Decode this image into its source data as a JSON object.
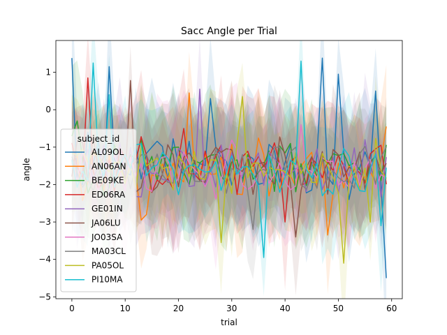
{
  "chart_data": {
    "type": "line",
    "title": "Sacc Angle per Trial",
    "xlabel": "trial",
    "ylabel": "angle",
    "xlim": [
      -3,
      62
    ],
    "ylim": [
      -5.05,
      1.85
    ],
    "xticks": [
      0,
      10,
      20,
      30,
      40,
      50,
      60
    ],
    "yticks": [
      -5,
      -4,
      -3,
      -2,
      -1,
      0,
      1
    ],
    "grid": false,
    "legend": {
      "title": "subject_id",
      "placement": "center-left"
    },
    "series": [
      {
        "name": "AL09OL",
        "color": "#1f77b4",
        "seed": 11,
        "anchors": [
          [
            0,
            1.38
          ],
          [
            1,
            -1.9
          ],
          [
            3,
            -0.6
          ],
          [
            7,
            1.15
          ],
          [
            9,
            -1.6
          ],
          [
            26,
            0.3
          ],
          [
            47,
            1.38
          ],
          [
            48,
            -1.8
          ],
          [
            50,
            0.95
          ],
          [
            52,
            -2.4
          ],
          [
            57,
            0.5
          ],
          [
            58,
            -2.0
          ],
          [
            59,
            -4.5
          ]
        ]
      },
      {
        "name": "AN06AN",
        "color": "#ff7f0e",
        "seed": 23,
        "anchors": [
          [
            13,
            -2.95
          ],
          [
            14,
            -2.8
          ],
          [
            22,
            0.45
          ],
          [
            48,
            -3.35
          ],
          [
            59,
            -0.45
          ]
        ]
      },
      {
        "name": "BE09KE",
        "color": "#2ca02c",
        "seed": 37,
        "anchors": [
          [
            1,
            -0.3
          ],
          [
            20,
            -1.0
          ],
          [
            56,
            -1.4
          ]
        ]
      },
      {
        "name": "ED06RA",
        "color": "#d62728",
        "seed": 41,
        "anchors": [
          [
            3,
            0.85
          ],
          [
            21,
            -0.5
          ],
          [
            40,
            -3.0
          ]
        ]
      },
      {
        "name": "GE01IN",
        "color": "#9467bd",
        "seed": 53,
        "anchors": [
          [
            24,
            0.55
          ],
          [
            55,
            -0.8
          ]
        ]
      },
      {
        "name": "JA06LU",
        "color": "#8c564b",
        "seed": 61,
        "anchors": [
          [
            11,
            0.78
          ],
          [
            12,
            -2.2
          ],
          [
            42,
            -3.4
          ]
        ]
      },
      {
        "name": "JO03SA",
        "color": "#e377c2",
        "seed": 71,
        "anchors": [
          [
            43,
            -0.4
          ],
          [
            57,
            -2.1
          ]
        ]
      },
      {
        "name": "MA03CL",
        "color": "#7f7f7f",
        "seed": 83,
        "anchors": [
          [
            34,
            -3.2
          ]
        ]
      },
      {
        "name": "PA05OL",
        "color": "#bcbd22",
        "seed": 97,
        "anchors": [
          [
            28,
            -3.55
          ],
          [
            32,
            0.35
          ],
          [
            51,
            -4.1
          ],
          [
            56,
            -3.0
          ]
        ]
      },
      {
        "name": "PI10MA",
        "color": "#17becf",
        "seed": 101,
        "anchors": [
          [
            4,
            1.25
          ],
          [
            5,
            -1.4
          ],
          [
            7,
            0.4
          ],
          [
            36,
            -3.95
          ],
          [
            37,
            -1.2
          ],
          [
            43,
            1.3
          ],
          [
            44,
            -1.6
          ],
          [
            58,
            -3.1
          ]
        ]
      }
    ],
    "n_trials": 60,
    "baseline": -1.55,
    "noise": 0.62,
    "band_half_width": [
      0.9,
      1.9
    ]
  }
}
